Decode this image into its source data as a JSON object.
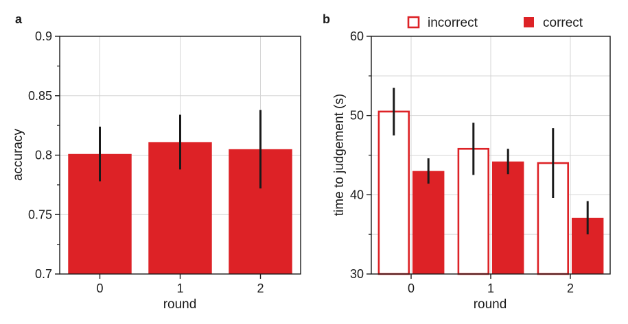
{
  "chart_data": [
    {
      "panel": "a",
      "type": "bar",
      "categories": [
        "0",
        "1",
        "2"
      ],
      "values": [
        0.801,
        0.811,
        0.805
      ],
      "errors": [
        0.023,
        0.023,
        0.033
      ],
      "xlabel": "round",
      "ylabel": "accuracy",
      "ylim": [
        0.7,
        0.9
      ],
      "yticks": [
        "0.7",
        "0.75",
        "0.8",
        "0.85",
        "0.9"
      ],
      "grid": true,
      "color": "#dd2226"
    },
    {
      "panel": "b",
      "type": "bar",
      "categories": [
        "0",
        "1",
        "2"
      ],
      "series": [
        {
          "name": "incorrect",
          "style": "outline",
          "values": [
            50.5,
            45.8,
            44.0
          ],
          "errors": [
            3.0,
            3.3,
            4.4
          ]
        },
        {
          "name": "correct",
          "style": "filled",
          "values": [
            43.0,
            44.2,
            37.1
          ],
          "errors": [
            1.6,
            1.6,
            2.1
          ]
        }
      ],
      "xlabel": "round",
      "ylabel": "time to judgement (s)",
      "ylim": [
        30,
        60
      ],
      "yticks": [
        "30",
        "40",
        "50",
        "60"
      ],
      "grid": true,
      "legend": "top",
      "color": "#dd2226"
    }
  ]
}
